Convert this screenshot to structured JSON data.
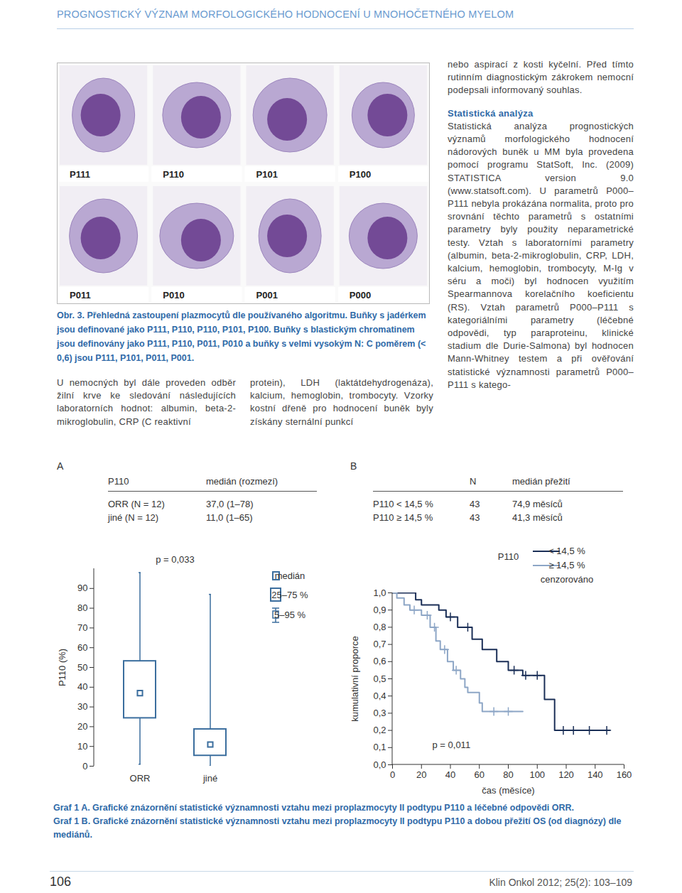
{
  "header": {
    "running_title": "PROGNOSTICKÝ VÝZNAM MORFOLOGICKÉHO HODNOCENÍ U MNOHOČETNÉHO MYELOM"
  },
  "figure": {
    "panels": [
      "P111",
      "P110",
      "P101",
      "P100",
      "P011",
      "P010",
      "P001",
      "P000"
    ],
    "caption": "Obr. 3. Přehledná zastoupení plazmocytů dle používaného algoritmu. Buňky s jadérkem jsou definované jako P111, P110, P110, P101, P100. Buňky s blastickým chromatinem jsou definovány jako P111, P110, P011, P010 a buňky s velmi vysokým N: C poměrem (< 0,6) jsou P111, P101, P011, P001."
  },
  "body_text": {
    "left": "U nemocných byl dále proveden odběr žilní krve ke sledování následujících laboratorních hodnot: albumin, beta-2-mikroglobulin, CRP (C reaktivní",
    "middle": "protein), LDH (laktátdehydrogenáza), kalcium, hemoglobin, trombocyty. Vzorky kostní dřeně pro hodnocení buněk byly získány sternální punkcí",
    "right_intro": "nebo aspirací z kosti kyčelní. Před tímto rutinním diagnostickým zákrokem nemocní podepsali informovaný souhlas.",
    "section_heading": "Statistická analýza",
    "section_text": "Statistická analýza prognostických významů morfologického hodnocení nádorových buněk u MM byla provedena pomocí programu StatSoft, Inc. (2009) STATISTICA version 9.0 (www.statsoft.com). U parametrů P000–P111 nebyla prokázána normalita, proto pro srovnání těchto parametrů s ostatními parametry byly použity neparametrické testy. Vztah s laboratorními parametry (albumin, beta-2-mikroglobulin, CRP, LDH, kalcium, hemoglobin, trombocyty, M-Ig v séru a moči) byl hodnocen využitím Spearmannova korelačního koeficientu (RS). Vztah parametrů P000–P111 s kategoriálními parametry (léčebné odpovědi, typ paraproteinu, klinické stadium dle Durie-Salmona) byl hodnocen Mann-Whitney testem a při ověřování statistické významnosti parametrů P000–P111 s katego-"
  },
  "tables": [
    {
      "label": "A",
      "columns": [
        "P110",
        "medián (rozmezí)"
      ],
      "rows": [
        [
          "ORR (N = 12)",
          "37,0 (1–78)"
        ],
        [
          "jiné (N = 12)",
          "11,0 (1–65)"
        ]
      ]
    },
    {
      "label": "B",
      "columns": [
        null,
        "N",
        "medián přežití"
      ],
      "rows": [
        [
          "P110 < 14,5 %",
          43,
          "74,9 měsíců"
        ],
        [
          "P110 ≥ 14,5 %",
          43,
          "41,3 měsíců"
        ]
      ]
    }
  ],
  "chart_data": [
    {
      "type": "box",
      "ylabel": "P110 (%)",
      "annotation": "p = 0,033",
      "categories": [
        "ORR",
        "jiné"
      ],
      "p5": [
        1,
        0
      ],
      "q1": [
        20,
        1
      ],
      "median": [
        37,
        11
      ],
      "q3": [
        57.5,
        23
      ],
      "p95": [
        98,
        87
      ],
      "ylim": [
        0,
        100
      ],
      "yticks": [
        0,
        10,
        20,
        30,
        40,
        50,
        60,
        70,
        80,
        90
      ],
      "color": "#3b6e9e",
      "legend_labels": [
        "medián",
        "25–75 %",
        "5–95 %"
      ]
    },
    {
      "type": "line",
      "title": "P110",
      "xlabel": "čas (měsíce)",
      "ylabel": "kumulativní proporce",
      "annotation": "p = 0,011",
      "line_style": "step",
      "xlim": [
        0,
        160
      ],
      "xticks": [
        0,
        20,
        40,
        60,
        80,
        100,
        120,
        140,
        160
      ],
      "ylim": [
        0,
        1
      ],
      "yticks": [
        {
          "value": 0,
          "label": "0,0"
        },
        {
          "value": 0.1,
          "label": "0,1"
        },
        {
          "value": 0.2,
          "label": "0,2"
        },
        {
          "value": 0.3,
          "label": "0,3"
        },
        {
          "value": 0.4,
          "label": "0,4"
        },
        {
          "value": 0.5,
          "label": "0,5"
        },
        {
          "value": 0.6,
          "label": "0,6"
        },
        {
          "value": 0.7,
          "label": "0,7"
        },
        {
          "value": 0.8,
          "label": "0,8"
        },
        {
          "value": 0.9,
          "label": "0,9"
        },
        {
          "value": 1,
          "label": "1,0"
        }
      ],
      "censored_label": "cenzorováno",
      "series": [
        {
          "name": "< 14,5 %",
          "color": "#1b2f57",
          "marker": "plus",
          "x": [
            0,
            16,
            20,
            32,
            37,
            45,
            55,
            62,
            72,
            80,
            90,
            105,
            112,
            150
          ],
          "values": [
            1,
            0.96,
            0.93,
            0.9,
            0.86,
            0.8,
            0.73,
            0.67,
            0.6,
            0.55,
            0.52,
            0.38,
            0.2,
            0.2
          ],
          "censored_x": [
            40,
            52,
            84,
            92,
            100,
            118,
            125,
            136,
            148
          ],
          "censored_values": [
            0.86,
            0.8,
            0.55,
            0.52,
            0.52,
            0.2,
            0.2,
            0.2,
            0.2
          ]
        },
        {
          "name": "≥ 14,5 %",
          "color": "#8da6c6",
          "marker": "plus",
          "x": [
            0,
            3,
            8,
            12,
            20,
            26,
            30,
            33,
            38,
            42,
            47,
            50,
            52,
            60,
            62,
            90
          ],
          "values": [
            1,
            0.97,
            0.93,
            0.9,
            0.87,
            0.8,
            0.72,
            0.67,
            0.6,
            0.55,
            0.5,
            0.45,
            0.42,
            0.36,
            0.31,
            0.31
          ],
          "censored_x": [
            15,
            24,
            29,
            36,
            44,
            70,
            80
          ],
          "censored_values": [
            0.9,
            0.87,
            0.8,
            0.67,
            0.55,
            0.31,
            0.31
          ]
        }
      ]
    }
  ],
  "graph_captions": [
    "Graf 1 A. Grafické znázornění statistické významnosti vztahu mezi proplazmocyty II podtypu P110 a léčebné odpovědi ORR.",
    "Graf 1 B. Grafické znázornění statistické významnosti vztahu mezi proplazmocyty II podtypu P110 a dobou přežití OS (od diagnózy) dle mediánů."
  ],
  "footer": {
    "page": 106,
    "journal": "Klin Onkol 2012; 25(2): 103–109"
  }
}
